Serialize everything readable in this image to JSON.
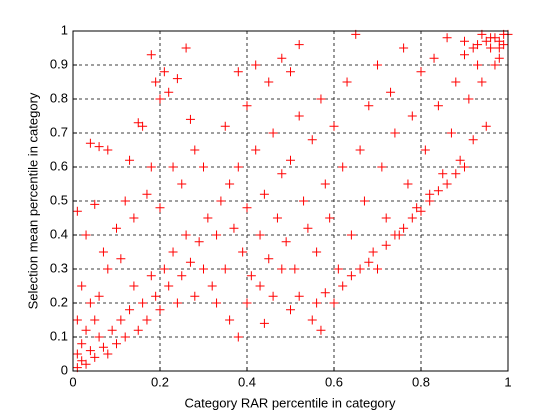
{
  "chart_data": {
    "type": "scatter",
    "xlabel": "Category RAR percentile in category",
    "ylabel": "Selection mean percentile in category",
    "color": "#ff0000",
    "marker": "+",
    "grid": true,
    "xlim": [
      0,
      1
    ],
    "ylim": [
      0,
      1
    ],
    "xticks": [
      0,
      0.2,
      0.4,
      0.6,
      0.8,
      1
    ],
    "yticks": [
      0,
      0.1,
      0.2,
      0.3,
      0.4,
      0.5,
      0.6,
      0.7,
      0.8,
      0.9,
      1
    ],
    "x": [
      0.01,
      0.02,
      0.01,
      0.03,
      0.04,
      0.02,
      0.05,
      0.06,
      0.03,
      0.07,
      0.08,
      0.01,
      0.05,
      0.09,
      0.1,
      0.04,
      0.02,
      0.06,
      0.11,
      0.12,
      0.13,
      0.15,
      0.14,
      0.16,
      0.17,
      0.18,
      0.19,
      0.2,
      0.21,
      0.22,
      0.23,
      0.24,
      0.25,
      0.26,
      0.27,
      0.28,
      0.29,
      0.3,
      0.31,
      0.32,
      0.01,
      0.03,
      0.05,
      0.07,
      0.08,
      0.04,
      0.06,
      0.08,
      0.1,
      0.12,
      0.14,
      0.11,
      0.15,
      0.16,
      0.18,
      0.2,
      0.19,
      0.21,
      0.22,
      0.24,
      0.26,
      0.23,
      0.25,
      0.27,
      0.28,
      0.3,
      0.18,
      0.17,
      0.2,
      0.13,
      0.33,
      0.34,
      0.35,
      0.36,
      0.37,
      0.38,
      0.39,
      0.4,
      0.41,
      0.42,
      0.43,
      0.44,
      0.45,
      0.46,
      0.47,
      0.48,
      0.49,
      0.5,
      0.51,
      0.52,
      0.53,
      0.54,
      0.55,
      0.56,
      0.57,
      0.58,
      0.59,
      0.6,
      0.35,
      0.38,
      0.4,
      0.42,
      0.45,
      0.48,
      0.5,
      0.52,
      0.33,
      0.36,
      0.4,
      0.43,
      0.46,
      0.48,
      0.5,
      0.52,
      0.38,
      0.44,
      0.61,
      0.62,
      0.63,
      0.64,
      0.65,
      0.66,
      0.67,
      0.68,
      0.69,
      0.7,
      0.71,
      0.72,
      0.73,
      0.74,
      0.75,
      0.76,
      0.77,
      0.78,
      0.79,
      0.8,
      0.81,
      0.82,
      0.83,
      0.84,
      0.85,
      0.86,
      0.87,
      0.88,
      0.89,
      0.9,
      0.91,
      0.92,
      0.93,
      0.94,
      0.95,
      0.96,
      0.97,
      0.98,
      0.99,
      0.97,
      0.98,
      0.99,
      1,
      0.96,
      0.95,
      0.93,
      0.94,
      0.92,
      0.9,
      0.98,
      0.6,
      0.62,
      0.64,
      0.66,
      0.68,
      0.7,
      0.72,
      0.74,
      0.76,
      0.78,
      0.8,
      0.82,
      0.84,
      0.86,
      0.88,
      0.9,
      0.55,
      0.58,
      0.57,
      0.56
    ],
    "values": [
      0.01,
      0.03,
      0.05,
      0.02,
      0.06,
      0.08,
      0.04,
      0.1,
      0.12,
      0.07,
      0.05,
      0.15,
      0.15,
      0.12,
      0.08,
      0.2,
      0.25,
      0.22,
      0.15,
      0.1,
      0.18,
      0.12,
      0.25,
      0.2,
      0.15,
      0.28,
      0.22,
      0.18,
      0.3,
      0.25,
      0.35,
      0.2,
      0.28,
      0.4,
      0.32,
      0.22,
      0.38,
      0.3,
      0.45,
      0.25,
      0.47,
      0.4,
      0.49,
      0.35,
      0.3,
      0.67,
      0.66,
      0.65,
      0.42,
      0.5,
      0.45,
      0.33,
      0.73,
      0.72,
      0.93,
      0.8,
      0.85,
      0.88,
      0.82,
      0.86,
      0.95,
      0.6,
      0.55,
      0.74,
      0.65,
      0.6,
      0.6,
      0.52,
      0.48,
      0.62,
      0.4,
      0.5,
      0.3,
      0.55,
      0.42,
      0.6,
      0.35,
      0.48,
      0.28,
      0.65,
      0.4,
      0.52,
      0.33,
      0.7,
      0.45,
      0.58,
      0.38,
      0.62,
      0.3,
      0.75,
      0.5,
      0.42,
      0.68,
      0.35,
      0.8,
      0.55,
      0.45,
      0.72,
      0.72,
      0.88,
      0.78,
      0.9,
      0.85,
      0.92,
      0.88,
      0.96,
      0.2,
      0.15,
      0.2,
      0.25,
      0.22,
      0.3,
      0.18,
      0.22,
      0.1,
      0.14,
      0.3,
      0.6,
      0.85,
      0.4,
      0.99,
      0.65,
      0.5,
      0.78,
      0.35,
      0.9,
      0.6,
      0.45,
      0.82,
      0.7,
      0.4,
      0.95,
      0.55,
      0.75,
      0.48,
      0.88,
      0.65,
      0.52,
      0.92,
      0.78,
      0.58,
      0.98,
      0.7,
      0.85,
      0.62,
      0.93,
      0.8,
      0.68,
      0.9,
      0.85,
      0.72,
      0.95,
      0.9,
      0.97,
      0.99,
      0.98,
      0.95,
      0.96,
      0.99,
      0.98,
      0.97,
      0.96,
      0.99,
      0.95,
      0.97,
      0.92,
      0.2,
      0.25,
      0.28,
      0.3,
      0.32,
      0.3,
      0.37,
      0.4,
      0.42,
      0.45,
      0.47,
      0.5,
      0.53,
      0.55,
      0.58,
      0.6,
      0.15,
      0.23,
      0.12,
      0.2
    ]
  }
}
